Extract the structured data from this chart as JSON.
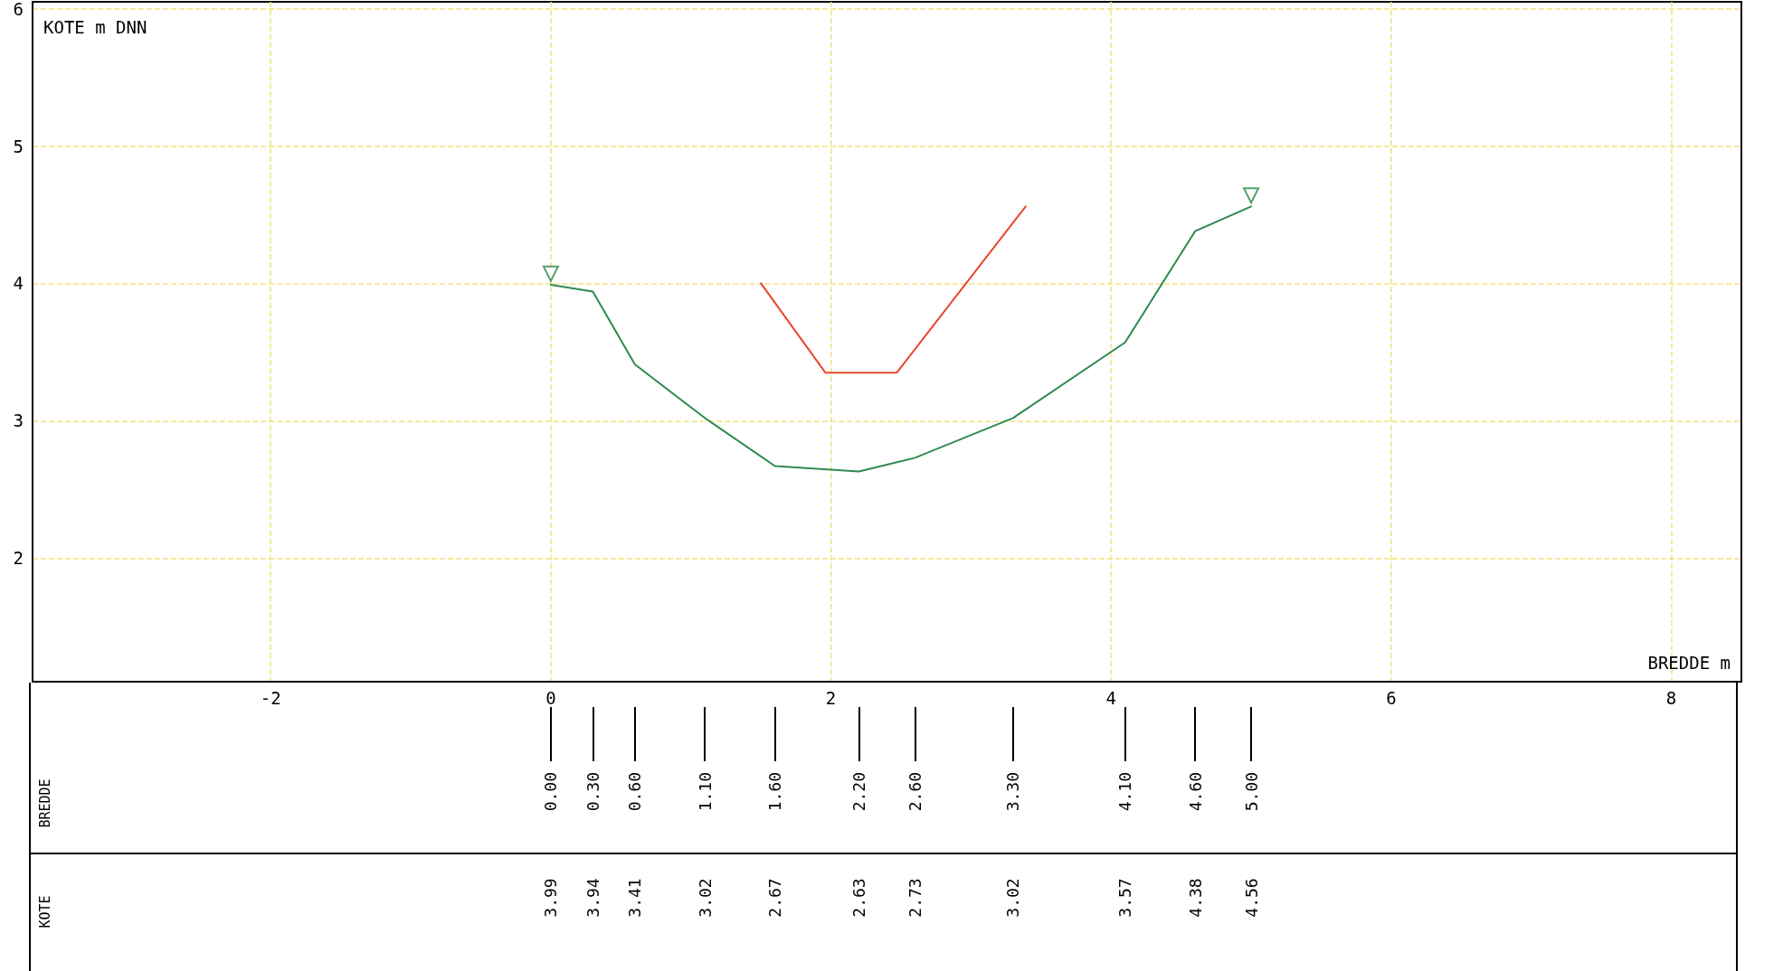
{
  "chart_data": {
    "type": "line",
    "xlabel": "BREDDE m",
    "ylabel": "KOTE m DNN",
    "x2label": "BREDDE",
    "xlim": [
      -3.7,
      8.5
    ],
    "xticks": [
      -2,
      0,
      2,
      4,
      6,
      8
    ],
    "ylim": [
      1.1,
      6.05
    ],
    "yticks": [
      2,
      3,
      4,
      5,
      6
    ],
    "x2lim": [
      -3.7,
      8.5
    ],
    "x2ticks": [
      {
        "value": 0,
        "label": "0.00"
      },
      {
        "value": 0.3,
        "label": "0.30"
      },
      {
        "value": 0.6,
        "label": "0.60"
      },
      {
        "value": 1.1,
        "label": "1.10"
      },
      {
        "value": 1.6,
        "label": "1.60"
      },
      {
        "value": 2.2,
        "label": "2.20"
      },
      {
        "value": 2.6,
        "label": "2.60"
      },
      {
        "value": 3.3,
        "label": "3.30"
      },
      {
        "value": 4.1,
        "label": "4.10"
      },
      {
        "value": 4.6,
        "label": "4.60"
      },
      {
        "value": 5.0,
        "label": "5.00"
      }
    ],
    "annotations": [
      "KOTE",
      "3.99",
      "3.94",
      "3.41",
      "3.02",
      "2.67",
      "2.63",
      "2.73",
      "3.02",
      "3.57",
      "4.38",
      "4.56"
    ],
    "grid": true,
    "line_style": "solid",
    "series": [
      {
        "color": "#2f8a4f",
        "x": [
          0,
          0.3,
          0.6,
          1.1,
          1.6,
          2.2,
          2.6,
          3.3,
          4.1,
          4.6,
          5.0
        ],
        "values": [
          3.99,
          3.94,
          3.41,
          3.02,
          2.67,
          2.63,
          2.73,
          3.02,
          3.57,
          4.38,
          4.56
        ]
      },
      {
        "color": "#e8452c",
        "x": [
          1.5,
          1.96,
          2.47,
          3.39
        ],
        "values": [
          4.0,
          3.35,
          3.35,
          4.56
        ]
      },
      {
        "type": "scatter",
        "color": "#2f8a4f",
        "marker": "triangle",
        "x": [
          0,
          5.0
        ],
        "values": [
          4.07,
          4.64
        ]
      }
    ]
  }
}
